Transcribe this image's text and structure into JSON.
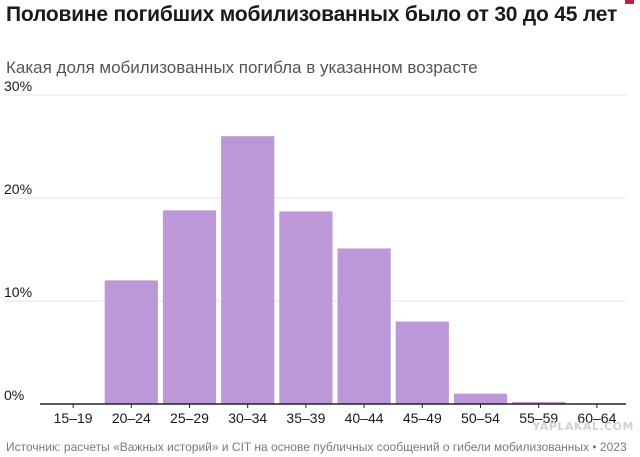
{
  "header": {
    "title": "Половине погибших мобилизованных было от 30 до 45 лет",
    "subtitle": "Какая доля мобилизованных погибла в указанном возрасте"
  },
  "footer": {
    "source": "Источник: расчеты «Важных историй» и CIT на основе публичных сообщений о гибели мобилизованных • 2023",
    "watermark": "YAPLAKAL.COM"
  },
  "colors": {
    "bar": "#bc98d9",
    "grid": "#e3e3e3",
    "axis": "#222222",
    "text": "#1a1a1a"
  },
  "chart_data": {
    "type": "bar",
    "title": "Половине погибших мобилизованных было от 30 до 45 лет",
    "subtitle": "Какая доля мобилизованных погибла в указанном возрасте",
    "categories": [
      "15–19",
      "20–24",
      "25–29",
      "30–34",
      "35–39",
      "40–44",
      "45–49",
      "50–54",
      "55–59",
      "60–64"
    ],
    "values": [
      0,
      12.0,
      18.8,
      26.0,
      18.7,
      15.1,
      8.0,
      1.0,
      0.2,
      0.05
    ],
    "ylim": [
      0,
      30
    ],
    "yticks": [
      0,
      10,
      20,
      30
    ],
    "ytick_labels": [
      "0%",
      "10%",
      "20%",
      "30%"
    ],
    "xlabel": "",
    "ylabel": "",
    "grid": true
  }
}
